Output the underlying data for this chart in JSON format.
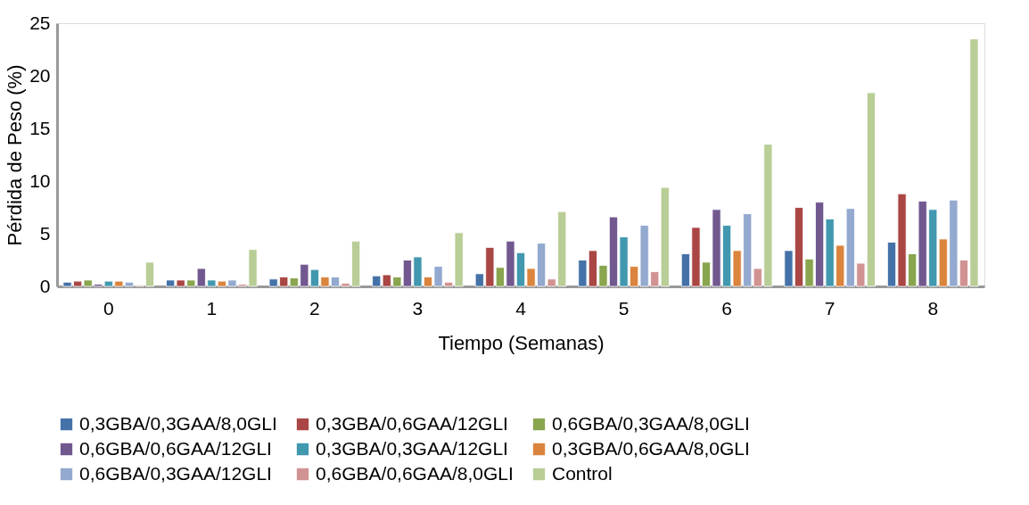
{
  "chart_data": {
    "type": "bar",
    "xlabel": "Tiempo (Semanas)",
    "ylabel": "Pérdida de Peso (%)",
    "categories": [
      "0",
      "1",
      "2",
      "3",
      "4",
      "5",
      "6",
      "7",
      "8"
    ],
    "ylim": [
      0,
      25
    ],
    "yticks": [
      0,
      5,
      10,
      15,
      20,
      25
    ],
    "grid": false,
    "legend": "bottom",
    "series": [
      {
        "name": "0,3GBA/0,3GAA/8,0GLI",
        "color": "#4472a8",
        "values": [
          0.4,
          0.6,
          0.7,
          1.0,
          1.2,
          2.5,
          3.1,
          3.4,
          4.2
        ]
      },
      {
        "name": "0,3GBA/0,6GAA/12GLI",
        "color": "#aa4643",
        "values": [
          0.5,
          0.6,
          0.9,
          1.1,
          3.7,
          3.4,
          5.6,
          7.5,
          8.8
        ]
      },
      {
        "name": "0,6GBA/0,3GAA/8,0GLI",
        "color": "#89a54e",
        "values": [
          0.6,
          0.6,
          0.8,
          0.9,
          1.8,
          2.0,
          2.3,
          2.6,
          3.1
        ]
      },
      {
        "name": "0,6GBA/0,6GAA/12GLI",
        "color": "#71588f",
        "values": [
          0.2,
          1.7,
          2.1,
          2.5,
          4.3,
          6.6,
          7.3,
          8.0,
          8.1
        ]
      },
      {
        "name": "0,3GBA/0,3GAA/12GLI",
        "color": "#4198af",
        "values": [
          0.5,
          0.6,
          1.6,
          2.8,
          3.2,
          4.7,
          5.8,
          6.4,
          7.3
        ]
      },
      {
        "name": "0,3GBA/0,6GAA/8,0GLI",
        "color": "#db843d",
        "values": [
          0.5,
          0.5,
          0.9,
          0.9,
          1.7,
          1.9,
          3.4,
          3.9,
          4.5
        ]
      },
      {
        "name": "0,6GBA/0,3GAA/12GLI",
        "color": "#93a9cf",
        "values": [
          0.4,
          0.6,
          0.9,
          1.9,
          4.1,
          5.8,
          6.9,
          7.4,
          8.2
        ]
      },
      {
        "name": "0,6GBA/0,6GAA/8,0GLI",
        "color": "#d19392",
        "values": [
          0.1,
          0.2,
          0.3,
          0.4,
          0.7,
          1.4,
          1.7,
          2.2,
          2.5
        ]
      },
      {
        "name": "Control",
        "color": "#b9cd96",
        "values": [
          2.3,
          3.5,
          4.3,
          5.1,
          7.1,
          9.4,
          13.5,
          18.4,
          23.5
        ]
      }
    ]
  }
}
